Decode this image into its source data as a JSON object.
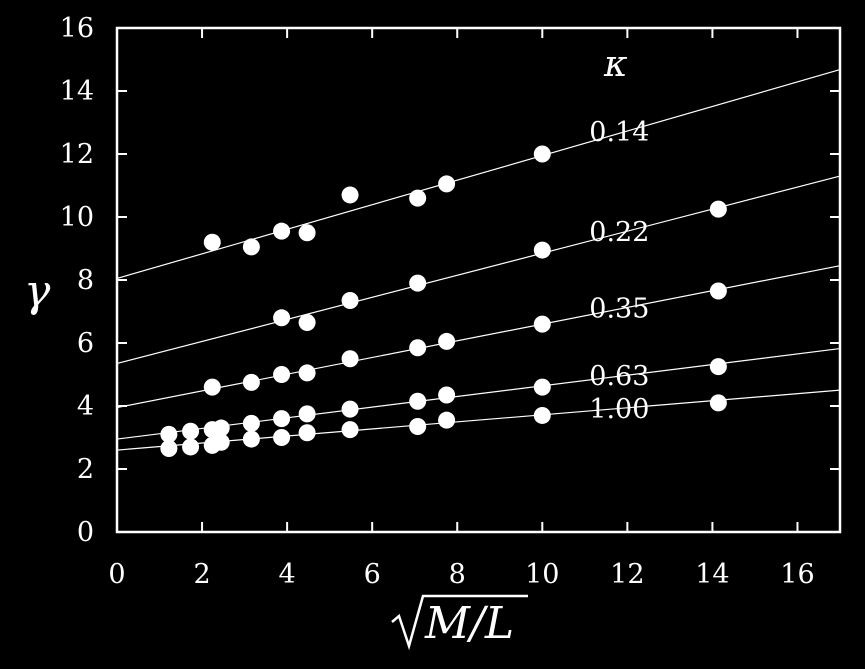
{
  "chart_data": {
    "type": "scatter",
    "xlabel": "M/L",
    "xlabel_sqrt": true,
    "ylabel": "γ",
    "xlim": [
      0,
      17
    ],
    "ylim": [
      0,
      16
    ],
    "xticks": [
      0,
      2,
      4,
      6,
      8,
      10,
      12,
      14,
      16
    ],
    "yticks": [
      0,
      2,
      4,
      6,
      8,
      10,
      12,
      14,
      16
    ],
    "grid": false,
    "legend_title": "κ",
    "legend_position": "top-right",
    "colors": {
      "background": "#000000",
      "foreground": "#ffffff"
    },
    "series": [
      {
        "name": "0.14",
        "fit": {
          "intercept": 8.05,
          "slope": 0.39
        },
        "points": [
          [
            2.24,
            9.2
          ],
          [
            3.16,
            9.05
          ],
          [
            3.87,
            9.55
          ],
          [
            4.47,
            9.5
          ],
          [
            5.48,
            10.7
          ],
          [
            7.07,
            10.6
          ],
          [
            7.75,
            11.05
          ],
          [
            10.0,
            12.0
          ]
        ]
      },
      {
        "name": "0.22",
        "fit": {
          "intercept": 5.35,
          "slope": 0.35
        },
        "points": [
          [
            3.87,
            6.8
          ],
          [
            4.47,
            6.65
          ],
          [
            5.48,
            7.35
          ],
          [
            7.07,
            7.9
          ],
          [
            10.0,
            8.95
          ],
          [
            14.14,
            10.25
          ]
        ]
      },
      {
        "name": "0.35",
        "fit": {
          "intercept": 3.95,
          "slope": 0.265
        },
        "points": [
          [
            2.24,
            4.6
          ],
          [
            3.16,
            4.75
          ],
          [
            3.87,
            5.0
          ],
          [
            4.47,
            5.05
          ],
          [
            5.48,
            5.5
          ],
          [
            7.07,
            5.85
          ],
          [
            7.75,
            6.05
          ],
          [
            10.0,
            6.6
          ],
          [
            14.14,
            7.65
          ]
        ]
      },
      {
        "name": "0.63",
        "fit": {
          "intercept": 2.95,
          "slope": 0.169
        },
        "points": [
          [
            1.22,
            3.1
          ],
          [
            1.73,
            3.2
          ],
          [
            2.24,
            3.25
          ],
          [
            2.45,
            3.3
          ],
          [
            3.16,
            3.45
          ],
          [
            3.87,
            3.6
          ],
          [
            4.47,
            3.75
          ],
          [
            5.48,
            3.9
          ],
          [
            7.07,
            4.15
          ],
          [
            7.75,
            4.35
          ],
          [
            10.0,
            4.6
          ],
          [
            14.14,
            5.25
          ]
        ]
      },
      {
        "name": "1.00",
        "fit": {
          "intercept": 2.6,
          "slope": 0.112
        },
        "points": [
          [
            1.22,
            2.65
          ],
          [
            1.73,
            2.7
          ],
          [
            2.24,
            2.75
          ],
          [
            2.45,
            2.85
          ],
          [
            3.16,
            2.95
          ],
          [
            3.87,
            3.0
          ],
          [
            4.47,
            3.15
          ],
          [
            5.48,
            3.25
          ],
          [
            7.07,
            3.35
          ],
          [
            7.75,
            3.55
          ],
          [
            10.0,
            3.7
          ],
          [
            14.14,
            4.1
          ]
        ]
      }
    ]
  }
}
